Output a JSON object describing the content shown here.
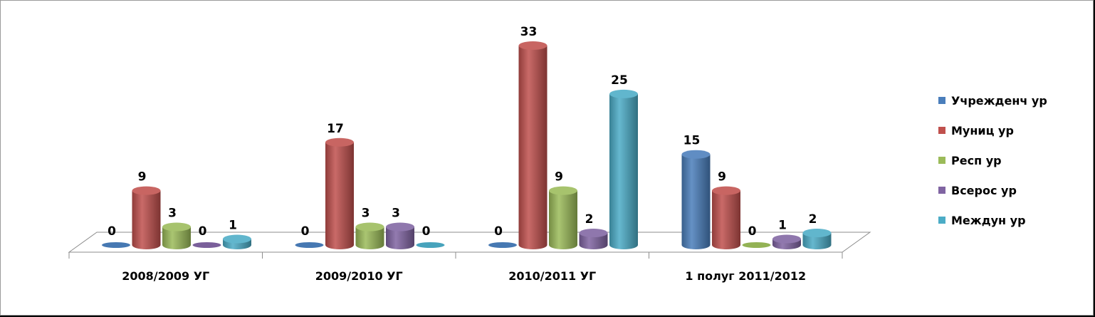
{
  "chart_data": {
    "type": "bar",
    "title": "",
    "xlabel": "",
    "ylabel": "",
    "categories": [
      "2008/2009 УГ",
      "2009/2010 УГ",
      "2010/2011 УГ",
      "1 полуг 2011/2012"
    ],
    "series": [
      {
        "name": "Учрежденч ур",
        "color": "#4a7ebb",
        "values": [
          0,
          0,
          0,
          15
        ]
      },
      {
        "name": "Муниц ур",
        "color": "#c0504d",
        "values": [
          9,
          17,
          33,
          9
        ]
      },
      {
        "name": "Респ ур",
        "color": "#9bbb59",
        "values": [
          3,
          3,
          9,
          0
        ]
      },
      {
        "name": "Всерос ур",
        "color": "#8064a2",
        "values": [
          0,
          3,
          2,
          1
        ]
      },
      {
        "name": "Междун ур",
        "color": "#4bacc6",
        "values": [
          1,
          0,
          25,
          2
        ]
      }
    ],
    "ylim": [
      0,
      33
    ],
    "legend_position": "right",
    "grid": false,
    "style": "3d-cylinder"
  }
}
